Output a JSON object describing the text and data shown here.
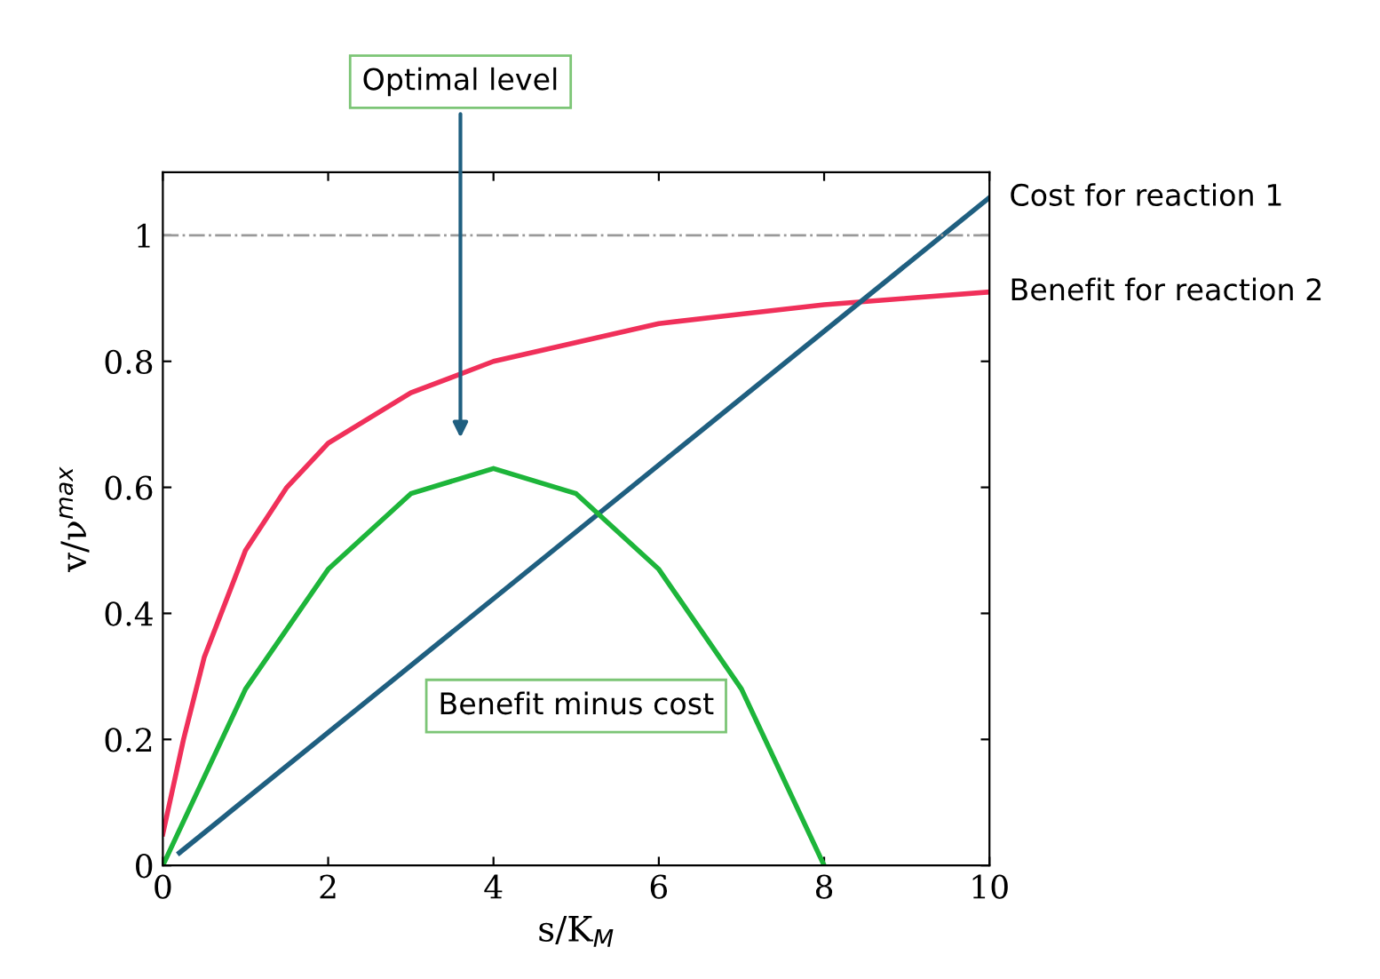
{
  "chart_data": {
    "type": "line",
    "xlabel": "s/K$_{M}$",
    "ylabel": "v/ν$^{max}$",
    "xlim": [
      0,
      10
    ],
    "xticks": [
      0,
      2,
      4,
      6,
      8,
      10
    ],
    "ylim": [
      0,
      1.1
    ],
    "yticks": [
      0,
      0.2,
      0.4,
      0.6,
      0.8,
      1
    ],
    "grid": false,
    "marker": "none",
    "line_style": "solid",
    "series": [
      {
        "color": "#f0305a",
        "x": [
          0,
          0.25,
          0.5,
          1,
          1.5,
          2,
          3,
          4,
          5,
          6,
          7,
          8,
          9,
          10
        ],
        "values": [
          0.05,
          0.2,
          0.33,
          0.5,
          0.6,
          0.67,
          0.75,
          0.8,
          0.83,
          0.86,
          0.875,
          0.89,
          0.9,
          0.91
        ]
      },
      {
        "color": "#1f5f80",
        "x": [
          0.2,
          10
        ],
        "values": [
          0.02,
          1.06
        ]
      },
      {
        "color": "#1db53a",
        "x": [
          0,
          1,
          2,
          3,
          4,
          5,
          6,
          7,
          8
        ],
        "values": [
          0,
          0.28,
          0.47,
          0.59,
          0.63,
          0.59,
          0.47,
          0.28,
          0
        ]
      }
    ],
    "ref_lines": [
      {
        "axis": "y",
        "value": 1,
        "label": null,
        "color": "#999999",
        "line_style": "dashdot"
      }
    ],
    "annotations": [
      {
        "text": "Cost for reaction 1",
        "x": 10,
        "y": 1.06
      },
      {
        "text": "Benefit for reaction 2",
        "x": 10,
        "y": 0.91
      },
      "Optimal level",
      "Benefit minus cost"
    ]
  }
}
